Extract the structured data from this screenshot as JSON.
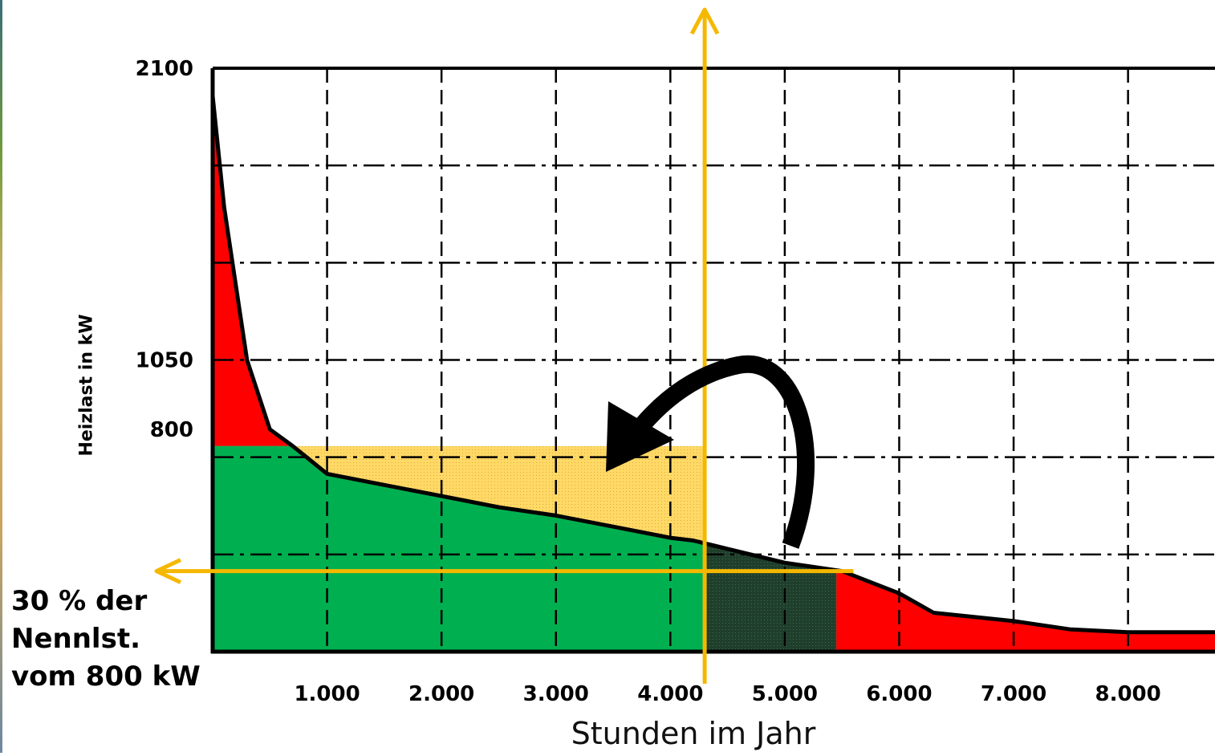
{
  "chart_data": {
    "type": "area",
    "title": "",
    "xlabel": "Stunden im Jahr",
    "ylabel": "Heizlast in kW",
    "xlim": [
      0,
      8760
    ],
    "ylim": [
      0,
      2100
    ],
    "x_ticks": [
      1000,
      2000,
      3000,
      4000,
      5000,
      6000,
      7000,
      8000
    ],
    "x_tick_labels": [
      "1.000",
      "2.000",
      "3.000",
      "4.000",
      "5.000",
      "6.000",
      "7.000",
      "8.000"
    ],
    "y_ticks": [
      800,
      1050,
      2100
    ],
    "y_tick_labels": [
      "800",
      "1050",
      "2100"
    ],
    "grid": true,
    "grid_style": "dash-dot",
    "series": [
      {
        "x": [
          0,
          100,
          300,
          500,
          700,
          1000,
          1500,
          2000,
          2500,
          3000,
          3500,
          4000,
          4200,
          4500,
          5000,
          5500,
          6000,
          6300,
          7000,
          7500,
          8000,
          8760
        ],
        "values": [
          2000,
          1600,
          1050,
          800,
          740,
          640,
          600,
          560,
          520,
          490,
          450,
          410,
          400,
          370,
          320,
          290,
          210,
          140,
          110,
          80,
          70,
          70
        ]
      }
    ],
    "regions": [
      {
        "fill": "#00b050",
        "x_range": [
          0,
          5450
        ],
        "max_value": 740
      },
      {
        "fill": "#ffd966",
        "x_range": [
          700,
          4300
        ],
        "value": 740
      },
      {
        "fill": "#1e3a2a",
        "x_range": [
          4300,
          5450
        ]
      },
      {
        "fill": "#ff0000",
        "x_range": [
          0,
          700
        ],
        "above_value": 740
      },
      {
        "fill": "#ff0000",
        "x_range": [
          5450,
          8760
        ]
      }
    ],
    "markers": {
      "vertical_arrow_x": 4300,
      "horizontal_arrow_y": 290,
      "arrow_color": "#f5b800"
    },
    "annotation_lines": [
      "30 % der",
      "Nennlst.",
      "vom 800 kW"
    ]
  }
}
